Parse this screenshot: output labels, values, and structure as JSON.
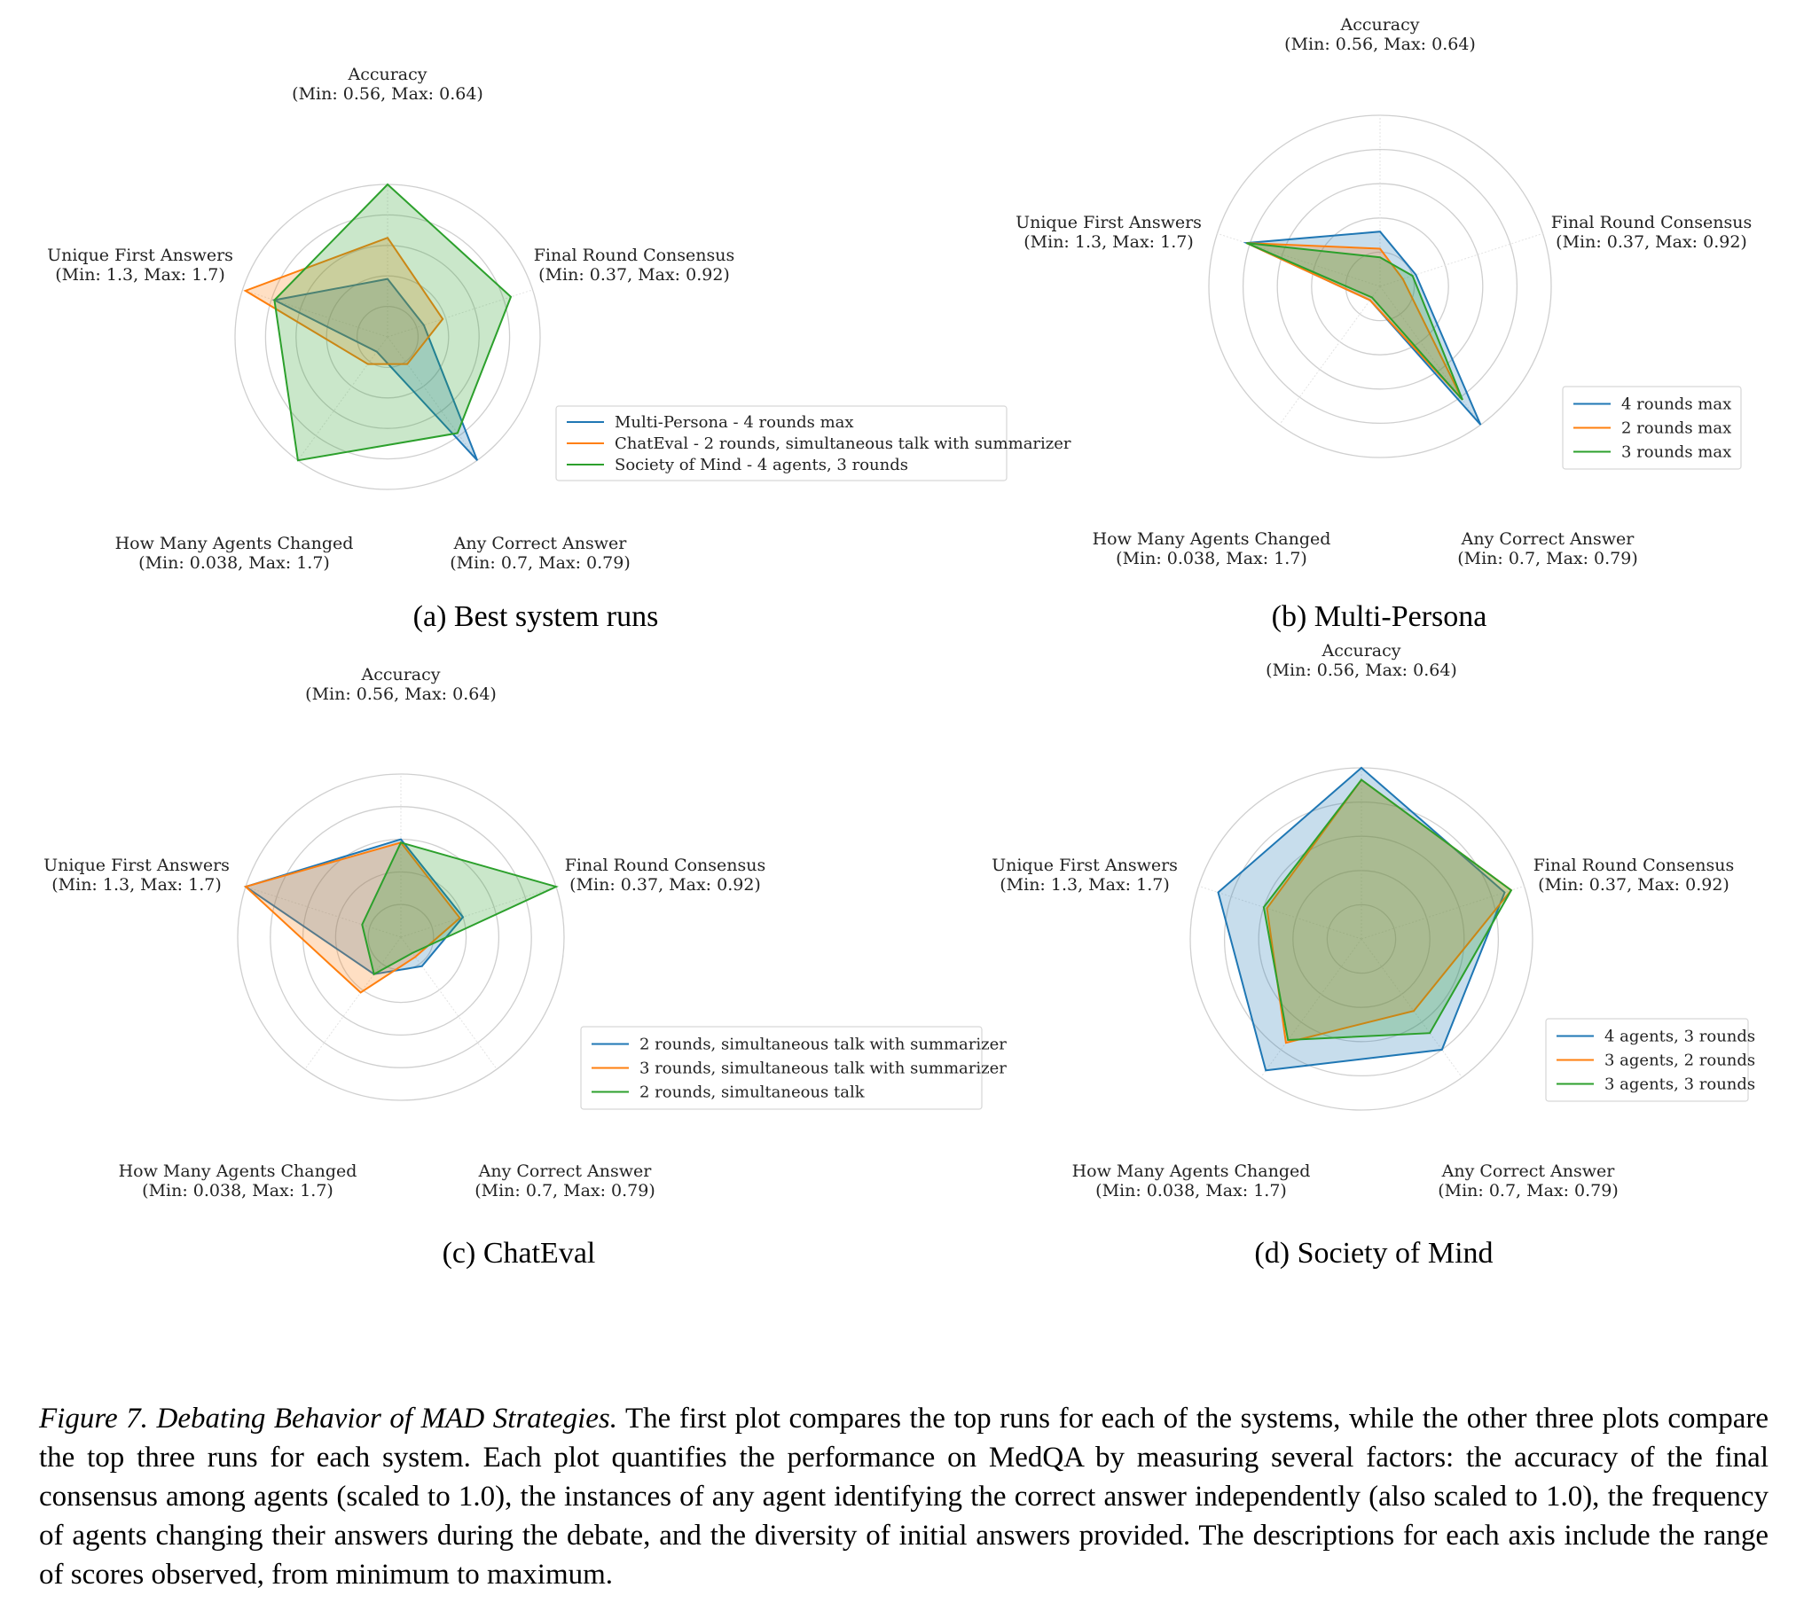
{
  "chart_data": [
    {
      "type": "radar",
      "caption": "(a) Best system runs",
      "axes": [
        {
          "name": "Accuracy",
          "range_text": "(Min: 0.56, Max: 0.64)"
        },
        {
          "name": "Final Round Consensus",
          "range_text": "(Min: 0.37, Max: 0.92)"
        },
        {
          "name": "Any Correct Answer",
          "range_text": "(Min: 0.7, Max: 0.79)"
        },
        {
          "name": "How Many Agents Changed",
          "range_text": "(Min: 0.038, Max: 1.7)"
        },
        {
          "name": "Unique First Answers",
          "range_text": "(Min: 1.3, Max: 1.7)"
        }
      ],
      "series": [
        {
          "name": "Multi-Persona - 4 rounds max",
          "color": "#1f77b4",
          "values": [
            0.38,
            0.25,
            1.0,
            0.12,
            0.78
          ]
        },
        {
          "name": "ChatEval - 2 rounds, simultaneous talk with summarizer",
          "color": "#ff7f0e",
          "values": [
            0.65,
            0.38,
            0.22,
            0.22,
            0.98
          ]
        },
        {
          "name": "Society of Mind - 4 agents, 3 rounds",
          "color": "#2ca02c",
          "values": [
            1.0,
            0.85,
            0.78,
            1.0,
            0.78
          ]
        }
      ],
      "legend": "lower-right",
      "grid": true
    },
    {
      "type": "radar",
      "caption": "(b) Multi-Persona",
      "axes": [
        {
          "name": "Accuracy",
          "range_text": "(Min: 0.56, Max: 0.64)"
        },
        {
          "name": "Final Round Consensus",
          "range_text": "(Min: 0.37, Max: 0.92)"
        },
        {
          "name": "Any Correct Answer",
          "range_text": "(Min: 0.7, Max: 0.79)"
        },
        {
          "name": "How Many Agents Changed",
          "range_text": "(Min: 0.038, Max: 1.7)"
        },
        {
          "name": "Unique First Answers",
          "range_text": "(Min: 1.3, Max: 1.7)"
        }
      ],
      "series": [
        {
          "name": "4 rounds max",
          "color": "#1f77b4",
          "values": [
            0.32,
            0.22,
            1.0,
            0.1,
            0.82
          ]
        },
        {
          "name": "2 rounds max",
          "color": "#ff7f0e",
          "values": [
            0.22,
            0.14,
            0.82,
            0.1,
            0.82
          ]
        },
        {
          "name": "3 rounds max",
          "color": "#2ca02c",
          "values": [
            0.17,
            0.2,
            0.82,
            0.08,
            0.82
          ]
        }
      ],
      "legend": "lower-right",
      "grid": true
    },
    {
      "type": "radar",
      "caption": "(c) ChatEval",
      "axes": [
        {
          "name": "Accuracy",
          "range_text": "(Min: 0.56, Max: 0.64)"
        },
        {
          "name": "Final Round Consensus",
          "range_text": "(Min: 0.37, Max: 0.92)"
        },
        {
          "name": "Any Correct Answer",
          "range_text": "(Min: 0.7, Max: 0.79)"
        },
        {
          "name": "How Many Agents Changed",
          "range_text": "(Min: 0.038, Max: 1.7)"
        },
        {
          "name": "Unique First Answers",
          "range_text": "(Min: 1.3, Max: 1.7)"
        }
      ],
      "series": [
        {
          "name": "2 rounds, simultaneous talk with summarizer",
          "color": "#1f77b4",
          "values": [
            0.6,
            0.4,
            0.22,
            0.28,
            1.0
          ]
        },
        {
          "name": "3 rounds, simultaneous talk with summarizer",
          "color": "#ff7f0e",
          "values": [
            0.58,
            0.38,
            0.15,
            0.42,
            1.0
          ]
        },
        {
          "name": "2 rounds, simultaneous talk",
          "color": "#2ca02c",
          "values": [
            0.58,
            1.0,
            0.12,
            0.28,
            0.25
          ]
        }
      ],
      "legend": "lower-right",
      "grid": true
    },
    {
      "type": "radar",
      "caption": "(d) Society of Mind",
      "axes": [
        {
          "name": "Accuracy",
          "range_text": "(Min: 0.56, Max: 0.64)"
        },
        {
          "name": "Final Round Consensus",
          "range_text": "(Min: 0.37, Max: 0.92)"
        },
        {
          "name": "Any Correct Answer",
          "range_text": "(Min: 0.7, Max: 0.79)"
        },
        {
          "name": "How Many Agents Changed",
          "range_text": "(Min: 0.038, Max: 1.7)"
        },
        {
          "name": "Unique First Answers",
          "range_text": "(Min: 1.3, Max: 1.7)"
        }
      ],
      "series": [
        {
          "name": "4 agents, 3 rounds",
          "color": "#1f77b4",
          "values": [
            1.0,
            0.88,
            0.8,
            0.95,
            0.88
          ]
        },
        {
          "name": "3 agents, 2 rounds",
          "color": "#ff7f0e",
          "values": [
            0.93,
            0.92,
            0.52,
            0.75,
            0.58
          ]
        },
        {
          "name": "3 agents, 3 rounds",
          "color": "#2ca02c",
          "values": [
            0.93,
            0.92,
            0.68,
            0.73,
            0.6
          ]
        }
      ],
      "legend": "lower-right",
      "grid": true
    }
  ],
  "caption": {
    "title": "Figure 7. Debating Behavior of MAD Strategies.",
    "body": " The first plot compares the top runs for each of the systems, while the other three plots compare the top three runs for each system. Each plot quantifies the performance on MedQA by measuring several factors: the accuracy of the final consensus among agents (scaled to 1.0), the instances of any agent identifying the correct answer independently (also scaled to 1.0), the frequency of agents changing their answers during the debate, and the diversity of initial answers provided. The descriptions for each axis include the range of scores observed, from minimum to maximum."
  }
}
